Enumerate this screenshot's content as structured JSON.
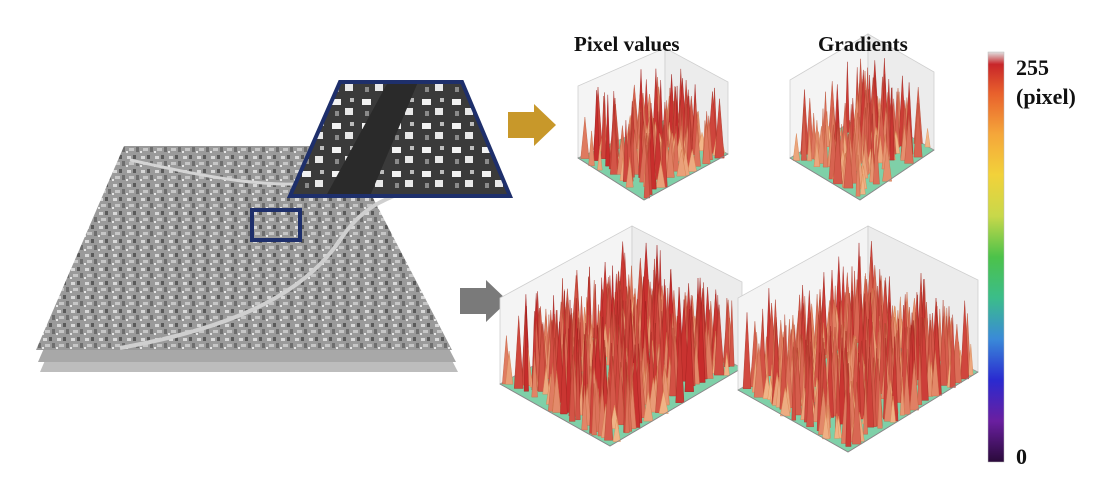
{
  "headers": {
    "pixel_values": "Pixel values",
    "gradients": "Gradients"
  },
  "colorbar": {
    "max_label": "255",
    "unit_label": "(pixel)",
    "min_label": "0",
    "colors": [
      "#2a0a3a",
      "#6a1fa0",
      "#2a2ad0",
      "#3a8ad8",
      "#3bbd8a",
      "#4cc24a",
      "#c8d84a",
      "#f2d23a",
      "#f5a63a",
      "#e8602c",
      "#c8262a",
      "#d8d8d8"
    ]
  },
  "colors": {
    "zoom_frame": "#1e2f6b",
    "arrow_top": "#c8982a",
    "arrow_bottom": "#7a7a7a",
    "surface_low": "#ffe6a8",
    "surface_high": "#c62a2a"
  }
}
